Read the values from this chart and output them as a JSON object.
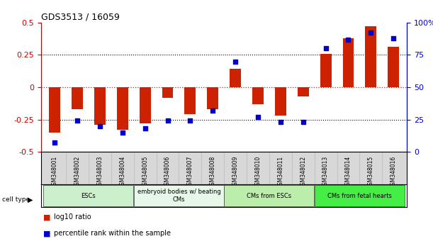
{
  "title": "GDS3513 / 16059",
  "samples": [
    "GSM348001",
    "GSM348002",
    "GSM348003",
    "GSM348004",
    "GSM348005",
    "GSM348006",
    "GSM348007",
    "GSM348008",
    "GSM348009",
    "GSM348010",
    "GSM348011",
    "GSM348012",
    "GSM348013",
    "GSM348014",
    "GSM348015",
    "GSM348016"
  ],
  "log10_ratio": [
    -0.35,
    -0.17,
    -0.29,
    -0.33,
    -0.28,
    -0.08,
    -0.21,
    -0.17,
    0.14,
    -0.13,
    -0.22,
    -0.07,
    0.26,
    0.38,
    0.47,
    0.31
  ],
  "percentile_rank": [
    7,
    24,
    20,
    15,
    18,
    24,
    24,
    32,
    70,
    27,
    23,
    23,
    80,
    87,
    92,
    88
  ],
  "cell_types": [
    {
      "label": "ESCs",
      "start": 0,
      "end": 4,
      "color": "#ccf0cc"
    },
    {
      "label": "embryoid bodies w/ beating\nCMs",
      "start": 4,
      "end": 8,
      "color": "#e8f8e8"
    },
    {
      "label": "CMs from ESCs",
      "start": 8,
      "end": 12,
      "color": "#bbeeaa"
    },
    {
      "label": "CMs from fetal hearts",
      "start": 12,
      "end": 16,
      "color": "#44ee44"
    }
  ],
  "ylim_left": [
    -0.5,
    0.5
  ],
  "ylim_right": [
    0,
    100
  ],
  "bar_color": "#cc2200",
  "dot_color": "#0000cc",
  "background_color": "#ffffff",
  "tick_positions_left": [
    -0.5,
    -0.25,
    0,
    0.25,
    0.5
  ],
  "tick_labels_left": [
    "-0.5",
    "-0.25",
    "0",
    "0.25",
    "0.5"
  ],
  "tick_positions_right": [
    0,
    25,
    50,
    75,
    100
  ],
  "tick_labels_right": [
    "0",
    "25",
    "50",
    "75",
    "100%"
  ]
}
